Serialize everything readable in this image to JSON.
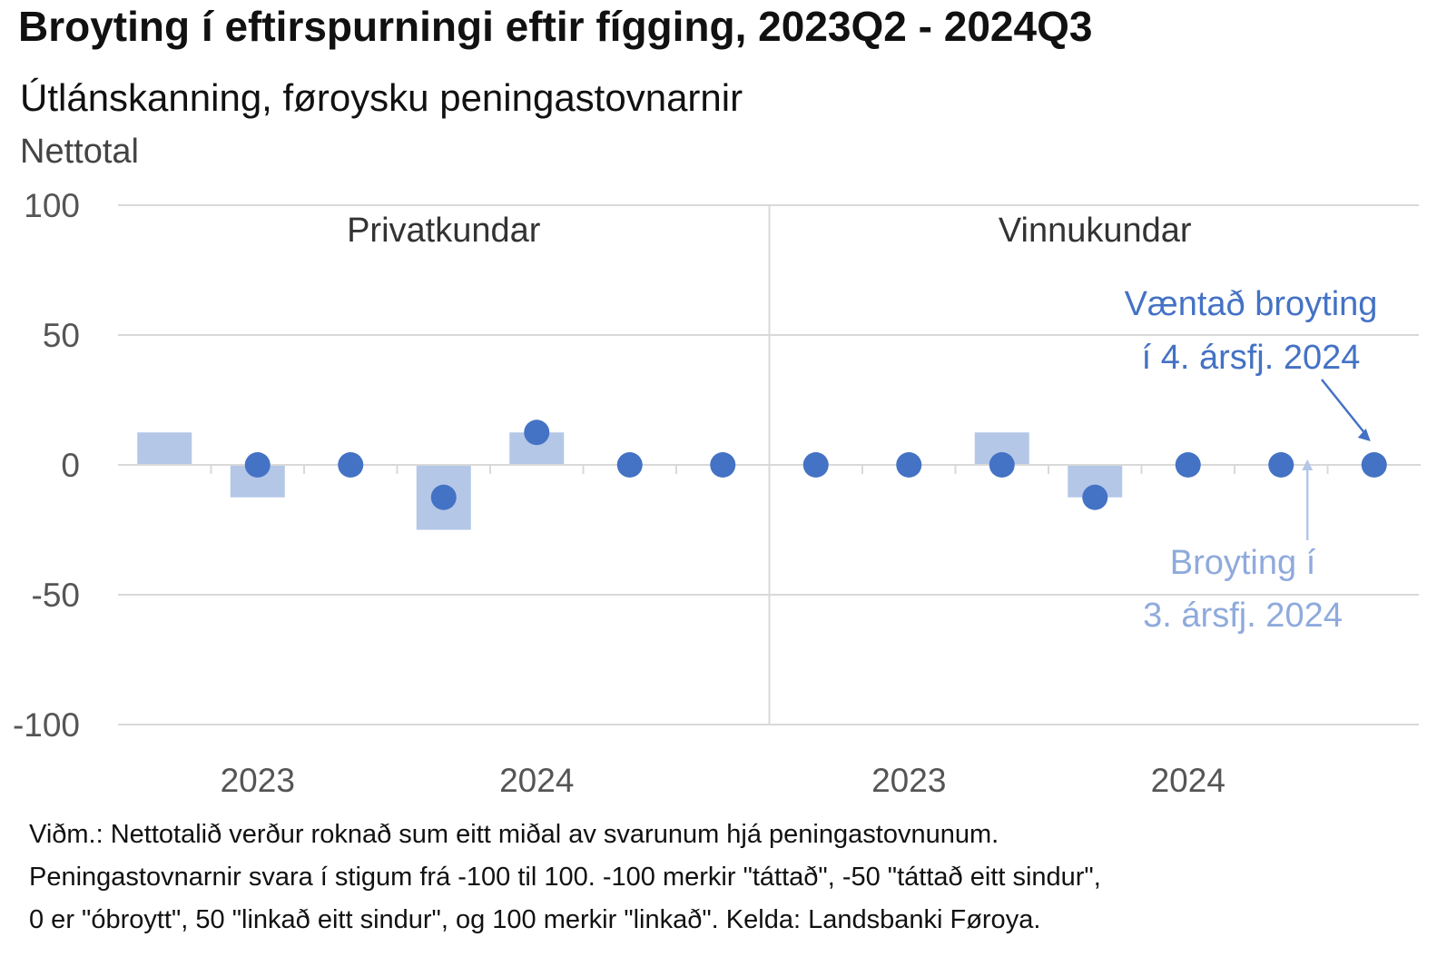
{
  "title": "Broyting í eftirspurningi eftir fígging, 2023Q2 - 2024Q3",
  "subtitle": "Útlánskanning, føroysku peningastovnarnir",
  "unit_label": "Nettotal",
  "note_lines": [
    "Viðm.: Nettotalið verður roknað sum eitt miðal av svarunum hjá peningastovnunum.",
    "Peningastovnarnir svara í stigum frá -100 til 100. -100 merkir \"táttað\", -50 \"táttað eitt sindur\",",
    "0 er \"óbroytt\", 50 \"linkað eitt sindur\", og 100 merkir \"linkað\". Kelda: Landsbanki Føroya."
  ],
  "colors": {
    "bar": "#b4c7e7",
    "dot": "#4472c4",
    "grid": "#d9d9d9",
    "axis_text": "#555555"
  },
  "chart_data": {
    "type": "bar",
    "ylim": [
      -100,
      100
    ],
    "yticks": [
      100,
      50,
      0,
      -50,
      -100
    ],
    "annotations": {
      "expected": [
        "Væntað broyting",
        "í 4. ársfj. 2024"
      ],
      "actual": [
        "Broyting í",
        "3. ársfj. 2024"
      ]
    },
    "panels": [
      {
        "name": "Privatkundar",
        "year_labels": [
          "2023",
          "2024"
        ],
        "series": [
          {
            "name": "Broyting",
            "values": [
              12.5,
              -12.5,
              0,
              -25,
              12.5,
              0,
              null
            ]
          },
          {
            "name": "Væntað broyting",
            "values": [
              null,
              0,
              0,
              -12.5,
              12.5,
              0,
              0
            ]
          }
        ]
      },
      {
        "name": "Vinnukundar",
        "year_labels": [
          "2023",
          "2024"
        ],
        "series": [
          {
            "name": "Broyting",
            "values": [
              0,
              0,
              12.5,
              -12.5,
              0,
              0,
              null
            ]
          },
          {
            "name": "Væntað broyting",
            "values": [
              0,
              0,
              0,
              -12.5,
              0,
              0,
              0
            ]
          }
        ]
      }
    ]
  }
}
